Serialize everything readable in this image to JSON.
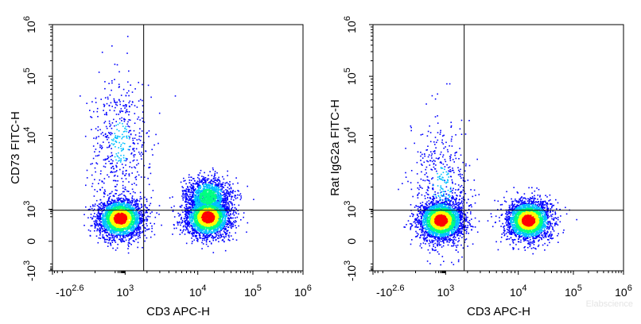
{
  "chart_data": [
    {
      "type": "scatter",
      "subtype": "flow-cytometry-density-dot-plot",
      "xlabel": "CD3 APC-H",
      "ylabel": "CD73 FITC-H",
      "x_ticks": [
        {
          "base": "-10",
          "exp": "2.6"
        },
        {
          "base": "10",
          "exp": "3"
        },
        {
          "base": "10",
          "exp": "4"
        },
        {
          "base": "10",
          "exp": "5"
        },
        {
          "base": "10",
          "exp": "6"
        }
      ],
      "y_ticks": [
        {
          "base": "-10",
          "exp": "3"
        },
        {
          "base": "0",
          "exp": ""
        },
        {
          "base": "10",
          "exp": "3"
        },
        {
          "base": "10",
          "exp": "4"
        },
        {
          "base": "10",
          "exp": "5"
        },
        {
          "base": "10",
          "exp": "6"
        }
      ],
      "xlim": [
        -400,
        1000000
      ],
      "ylim": [
        -1000,
        1000000
      ],
      "gate": {
        "x": 1800,
        "y": 800
      },
      "populations": [
        {
          "center": [
            300,
            150
          ],
          "relative_density": "high"
        },
        {
          "center": [
            15000,
            200
          ],
          "relative_density": "high"
        },
        {
          "center": [
            15000,
            1500
          ],
          "relative_density": "medium"
        },
        {
          "center": [
            300,
            8000
          ],
          "relative_density": "low"
        }
      ]
    },
    {
      "type": "scatter",
      "subtype": "flow-cytometry-density-dot-plot",
      "xlabel": "CD3 APC-H",
      "ylabel": "Rat IgG2a FITC-H",
      "x_ticks": [
        {
          "base": "-10",
          "exp": "2.6"
        },
        {
          "base": "10",
          "exp": "3"
        },
        {
          "base": "10",
          "exp": "4"
        },
        {
          "base": "10",
          "exp": "5"
        },
        {
          "base": "10",
          "exp": "6"
        }
      ],
      "y_ticks": [
        {
          "base": "-10",
          "exp": "3"
        },
        {
          "base": "0",
          "exp": ""
        },
        {
          "base": "10",
          "exp": "3"
        },
        {
          "base": "10",
          "exp": "4"
        },
        {
          "base": "10",
          "exp": "5"
        },
        {
          "base": "10",
          "exp": "6"
        }
      ],
      "xlim": [
        -400,
        1000000
      ],
      "ylim": [
        -1000,
        1000000
      ],
      "gate": {
        "x": 1800,
        "y": 800
      },
      "populations": [
        {
          "center": [
            300,
            100
          ],
          "relative_density": "high"
        },
        {
          "center": [
            15000,
            100
          ],
          "relative_density": "high"
        },
        {
          "center": [
            400,
            2000
          ],
          "relative_density": "low"
        }
      ]
    }
  ],
  "colors": {
    "low": "#0000ff",
    "mid_low": "#00c0ff",
    "mid": "#00ff80",
    "mid_high": "#ffff00",
    "high": "#ff0000",
    "gate_line": "#000000"
  },
  "watermark": "Elabscience"
}
